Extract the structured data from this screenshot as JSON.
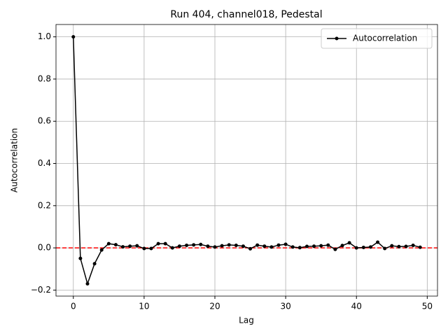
{
  "chart_data": {
    "type": "line",
    "title": "Run 404, channel018, Pedestal",
    "x_label": "Lag",
    "y_label": "Autocorrelation",
    "x": [
      0,
      1,
      2,
      3,
      4,
      5,
      6,
      7,
      8,
      9,
      10,
      11,
      12,
      13,
      14,
      15,
      16,
      17,
      18,
      19,
      20,
      21,
      22,
      23,
      24,
      25,
      26,
      27,
      28,
      29,
      30,
      31,
      32,
      33,
      34,
      35,
      36,
      37,
      38,
      39,
      40,
      41,
      42,
      43,
      44,
      45,
      46,
      47,
      48,
      49
    ],
    "series": [
      {
        "name": "Autocorrelation",
        "color": "#000000",
        "values": [
          1.0,
          -0.05,
          -0.17,
          -0.075,
          -0.01,
          0.02,
          0.015,
          0.005,
          0.008,
          0.01,
          -0.003,
          -0.003,
          0.02,
          0.02,
          0.0,
          0.008,
          0.012,
          0.014,
          0.016,
          0.008,
          0.004,
          0.01,
          0.014,
          0.012,
          0.008,
          -0.004,
          0.013,
          0.008,
          0.004,
          0.013,
          0.017,
          0.004,
          0.001,
          0.007,
          0.008,
          0.01,
          0.013,
          -0.007,
          0.011,
          0.024,
          0.0,
          0.002,
          0.004,
          0.027,
          -0.003,
          0.01,
          0.006,
          0.007,
          0.012,
          0.003
        ]
      }
    ],
    "hline": {
      "y": 0,
      "color": "#ff0000"
    },
    "xlim": [
      -2.45,
      51.45
    ],
    "xticks": [
      0,
      10,
      20,
      30,
      40,
      50
    ],
    "ylim": [
      -0.2285,
      1.0585
    ],
    "yticks": [
      {
        "value": -0.2,
        "label": "−0.2"
      },
      {
        "value": 0,
        "label": "0.0"
      },
      {
        "value": 0.2,
        "label": "0.2"
      },
      {
        "value": 0.4,
        "label": "0.4"
      },
      {
        "value": 0.6,
        "label": "0.6"
      },
      {
        "value": 0.8,
        "label": "0.8"
      },
      {
        "value": 1.0,
        "label": "1.0"
      }
    ],
    "grid": true,
    "legend": "upper right"
  }
}
